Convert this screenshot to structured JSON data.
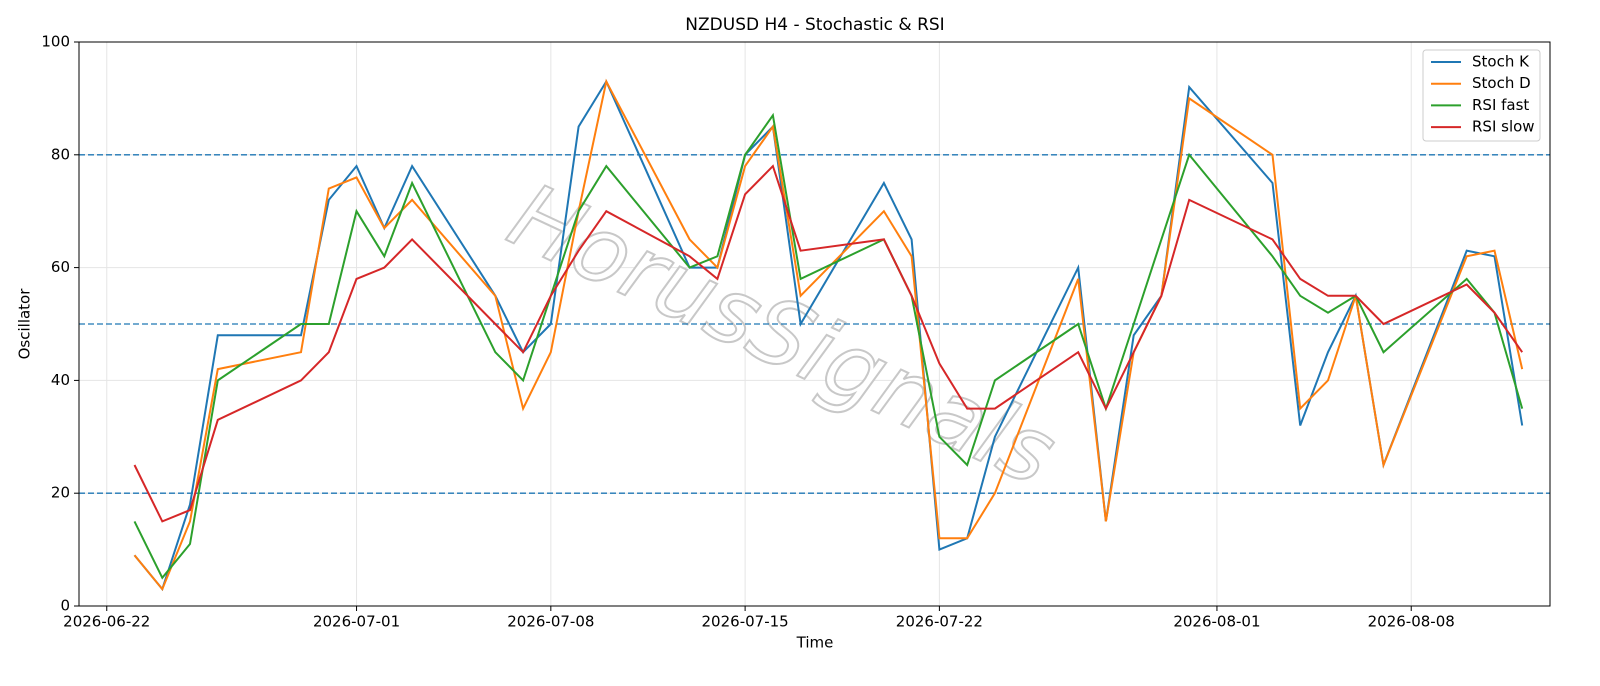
{
  "chart_data": {
    "type": "line",
    "title": "NZDUSD H4 - Stochastic & RSI",
    "x_label": "Time",
    "y_label": "Oscillator",
    "watermark": "HorusSignals",
    "x": [
      "2026-06-23",
      "2026-06-24",
      "2026-06-25",
      "2026-06-26",
      "2026-06-29",
      "2026-06-30",
      "2026-07-01",
      "2026-07-02",
      "2026-07-03",
      "2026-07-06",
      "2026-07-07",
      "2026-07-08",
      "2026-07-09",
      "2026-07-10",
      "2026-07-13",
      "2026-07-14",
      "2026-07-15",
      "2026-07-16",
      "2026-07-17",
      "2026-07-20",
      "2026-07-21",
      "2026-07-22",
      "2026-07-23",
      "2026-07-24",
      "2026-07-27",
      "2026-07-28",
      "2026-07-29",
      "2026-07-30",
      "2026-07-31",
      "2026-08-03",
      "2026-08-04",
      "2026-08-05",
      "2026-08-06",
      "2026-08-07",
      "2026-08-10",
      "2026-08-11",
      "2026-08-12"
    ],
    "series": [
      {
        "name": "Stoch K",
        "color": "#1f77b4",
        "values": [
          9,
          3,
          18,
          48,
          48,
          72,
          78,
          67,
          78,
          55,
          45,
          50,
          85,
          93,
          60,
          60,
          80,
          85,
          50,
          75,
          65,
          10,
          12,
          30,
          60,
          15,
          48,
          55,
          92,
          75,
          32,
          45,
          55,
          25,
          63,
          62,
          32
        ]
      },
      {
        "name": "Stoch D",
        "color": "#ff7f0e",
        "values": [
          9,
          3,
          15,
          42,
          45,
          74,
          76,
          67,
          72,
          55,
          35,
          45,
          70,
          93,
          65,
          60,
          78,
          85,
          55,
          70,
          62,
          12,
          12,
          20,
          58,
          15,
          45,
          55,
          90,
          80,
          35,
          40,
          55,
          25,
          62,
          63,
          42
        ]
      },
      {
        "name": "RSI fast",
        "color": "#2ca02c",
        "values": [
          15,
          5,
          11,
          40,
          50,
          50,
          70,
          62,
          75,
          45,
          40,
          55,
          70,
          78,
          60,
          62,
          80,
          87,
          58,
          65,
          55,
          30,
          25,
          40,
          50,
          35,
          50,
          65,
          80,
          62,
          55,
          52,
          55,
          45,
          58,
          52,
          35
        ]
      },
      {
        "name": "RSI slow",
        "color": "#d62728",
        "values": [
          25,
          15,
          17,
          33,
          40,
          45,
          58,
          60,
          65,
          50,
          45,
          55,
          63,
          70,
          62,
          58,
          73,
          78,
          63,
          65,
          55,
          43,
          35,
          35,
          45,
          35,
          45,
          55,
          72,
          65,
          58,
          55,
          55,
          50,
          57,
          52,
          45
        ]
      }
    ],
    "xlim": [
      "2026-06-21",
      "2026-08-13"
    ],
    "xticks": [
      "2026-06-22",
      "2026-07-01",
      "2026-07-08",
      "2026-07-15",
      "2026-07-22",
      "2026-08-01",
      "2026-08-08"
    ],
    "ylim": [
      0,
      100
    ],
    "yticks": [
      0,
      20,
      40,
      60,
      80,
      100
    ],
    "reference_lines": [
      {
        "value": 20,
        "color": "#1f77b4"
      },
      {
        "value": 50,
        "color": "#1f77b4"
      },
      {
        "value": 80,
        "color": "#1f77b4"
      }
    ],
    "grid": true,
    "legend": "upper right"
  }
}
